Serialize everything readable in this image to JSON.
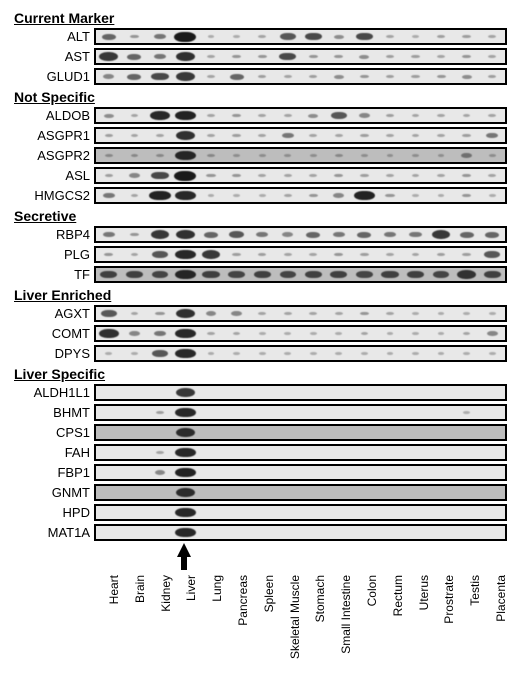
{
  "tissues": [
    "Heart",
    "Brain",
    "Kidney",
    "Liver",
    "Lung",
    "Pancreas",
    "Spleen",
    "Skeletal Muscle",
    "Stomach",
    "Small Intestine",
    "Colon",
    "Rectum",
    "Uterus",
    "Prostrate",
    "Testis",
    "Placenta"
  ],
  "liver_index": 3,
  "colors": {
    "figure_bg": "#ffffff",
    "strip_border": "#000000",
    "band": "#1a1a1a",
    "text": "#000000"
  },
  "fonts": {
    "header_size_pt": 14,
    "row_label_size_pt": 13,
    "tissue_label_size_pt": 12
  },
  "strip_bg_light": "#e8e8e8",
  "strip_bg_dark": "#bdbdbd",
  "groups": [
    {
      "title": "Current Marker",
      "rows": [
        {
          "label": "ALT",
          "bg": "light",
          "intensity": [
            0.5,
            0.2,
            0.4,
            1.0,
            0.05,
            0.05,
            0.1,
            0.6,
            0.7,
            0.25,
            0.7,
            0.1,
            0.05,
            0.15,
            0.15,
            0.1
          ]
        },
        {
          "label": "AST",
          "bg": "light",
          "intensity": [
            0.8,
            0.5,
            0.4,
            0.85,
            0.1,
            0.2,
            0.2,
            0.7,
            0.2,
            0.2,
            0.25,
            0.15,
            0.15,
            0.1,
            0.2,
            0.1
          ]
        },
        {
          "label": "GLUD1",
          "bg": "light",
          "intensity": [
            0.3,
            0.5,
            0.7,
            0.8,
            0.1,
            0.5,
            0.15,
            0.1,
            0.15,
            0.25,
            0.2,
            0.15,
            0.15,
            0.2,
            0.25,
            0.15
          ]
        }
      ]
    },
    {
      "title": "Not Specific",
      "rows": [
        {
          "label": "ALDOB",
          "bg": "light",
          "intensity": [
            0.25,
            0.1,
            0.9,
            0.95,
            0.1,
            0.2,
            0.1,
            0.1,
            0.25,
            0.6,
            0.3,
            0.15,
            0.1,
            0.1,
            0.1,
            0.1
          ]
        },
        {
          "label": "ASGPR1",
          "bg": "light",
          "intensity": [
            0.15,
            0.1,
            0.1,
            0.85,
            0.1,
            0.15,
            0.1,
            0.4,
            0.1,
            0.1,
            0.15,
            0.1,
            0.1,
            0.1,
            0.15,
            0.4
          ]
        },
        {
          "label": "ASGPR2",
          "bg": "dark",
          "intensity": [
            0.1,
            0.1,
            0.1,
            0.9,
            0.1,
            0.05,
            0.05,
            0.05,
            0.05,
            0.1,
            0.05,
            0.05,
            0.05,
            0.05,
            0.3,
            0.05
          ]
        },
        {
          "label": "ASL",
          "bg": "light",
          "intensity": [
            0.15,
            0.3,
            0.7,
            1.0,
            0.2,
            0.2,
            0.1,
            0.1,
            0.1,
            0.2,
            0.15,
            0.1,
            0.1,
            0.1,
            0.2,
            0.1
          ]
        },
        {
          "label": "HMGCS2",
          "bg": "light",
          "intensity": [
            0.4,
            0.1,
            0.95,
            0.9,
            0.05,
            0.05,
            0.05,
            0.1,
            0.2,
            0.3,
            0.95,
            0.2,
            0.05,
            0.05,
            0.2,
            0.05
          ]
        }
      ]
    },
    {
      "title": "Secretive",
      "rows": [
        {
          "label": "RBP4",
          "bg": "light",
          "intensity": [
            0.4,
            0.2,
            0.8,
            0.85,
            0.5,
            0.6,
            0.4,
            0.3,
            0.5,
            0.4,
            0.5,
            0.4,
            0.4,
            0.8,
            0.5,
            0.5
          ]
        },
        {
          "label": "PLG",
          "bg": "light",
          "intensity": [
            0.2,
            0.1,
            0.6,
            0.9,
            0.8,
            0.15,
            0.15,
            0.1,
            0.1,
            0.2,
            0.15,
            0.1,
            0.1,
            0.15,
            0.15,
            0.6
          ]
        },
        {
          "label": "TF",
          "bg": "dark",
          "intensity": [
            0.7,
            0.7,
            0.65,
            0.9,
            0.7,
            0.65,
            0.7,
            0.65,
            0.7,
            0.7,
            0.65,
            0.7,
            0.7,
            0.65,
            0.8,
            0.7
          ]
        }
      ]
    },
    {
      "title": "Liver Enriched",
      "rows": [
        {
          "label": "AGXT",
          "bg": "light",
          "intensity": [
            0.6,
            0.1,
            0.2,
            0.85,
            0.3,
            0.3,
            0.1,
            0.1,
            0.1,
            0.1,
            0.2,
            0.1,
            0.05,
            0.05,
            0.05,
            0.05
          ]
        },
        {
          "label": "COMT",
          "bg": "light",
          "intensity": [
            0.85,
            0.3,
            0.4,
            0.9,
            0.1,
            0.1,
            0.05,
            0.05,
            0.05,
            0.05,
            0.1,
            0.05,
            0.05,
            0.05,
            0.1,
            0.3
          ]
        },
        {
          "label": "DPYS",
          "bg": "light",
          "intensity": [
            0.05,
            0.05,
            0.6,
            0.9,
            0.05,
            0.05,
            0.05,
            0.05,
            0.05,
            0.05,
            0.05,
            0.05,
            0.05,
            0.05,
            0.05,
            0.05
          ]
        }
      ]
    },
    {
      "title": "Liver Specific",
      "rows": [
        {
          "label": "ALDH1L1",
          "bg": "light",
          "intensity": [
            0,
            0,
            0,
            0.8,
            0,
            0,
            0,
            0,
            0,
            0,
            0,
            0,
            0,
            0,
            0,
            0
          ]
        },
        {
          "label": "BHMT",
          "bg": "light",
          "intensity": [
            0,
            0,
            0.15,
            0.9,
            0,
            0,
            0,
            0,
            0,
            0,
            0,
            0,
            0,
            0,
            0.05,
            0
          ]
        },
        {
          "label": "CPS1",
          "bg": "dark",
          "intensity": [
            0,
            0,
            0,
            0.85,
            0,
            0,
            0,
            0,
            0,
            0,
            0,
            0,
            0,
            0,
            0,
            0
          ]
        },
        {
          "label": "FAH",
          "bg": "light",
          "intensity": [
            0,
            0,
            0.1,
            0.9,
            0,
            0,
            0,
            0,
            0,
            0,
            0,
            0,
            0,
            0,
            0,
            0
          ]
        },
        {
          "label": "FBP1",
          "bg": "light",
          "intensity": [
            0,
            0,
            0.3,
            0.95,
            0,
            0,
            0,
            0,
            0,
            0,
            0,
            0,
            0,
            0,
            0,
            0
          ]
        },
        {
          "label": "GNMT",
          "bg": "dark",
          "intensity": [
            0,
            0,
            0,
            0.85,
            0,
            0,
            0,
            0,
            0,
            0,
            0,
            0,
            0,
            0,
            0,
            0
          ]
        },
        {
          "label": "HPD",
          "bg": "light",
          "intensity": [
            0,
            0,
            0,
            0.9,
            0,
            0,
            0,
            0,
            0,
            0,
            0,
            0,
            0,
            0,
            0,
            0
          ]
        },
        {
          "label": "MAT1A",
          "bg": "light",
          "intensity": [
            0,
            0,
            0,
            0.9,
            0,
            0,
            0,
            0,
            0,
            0,
            0,
            0,
            0,
            0,
            0,
            0
          ]
        }
      ]
    }
  ]
}
